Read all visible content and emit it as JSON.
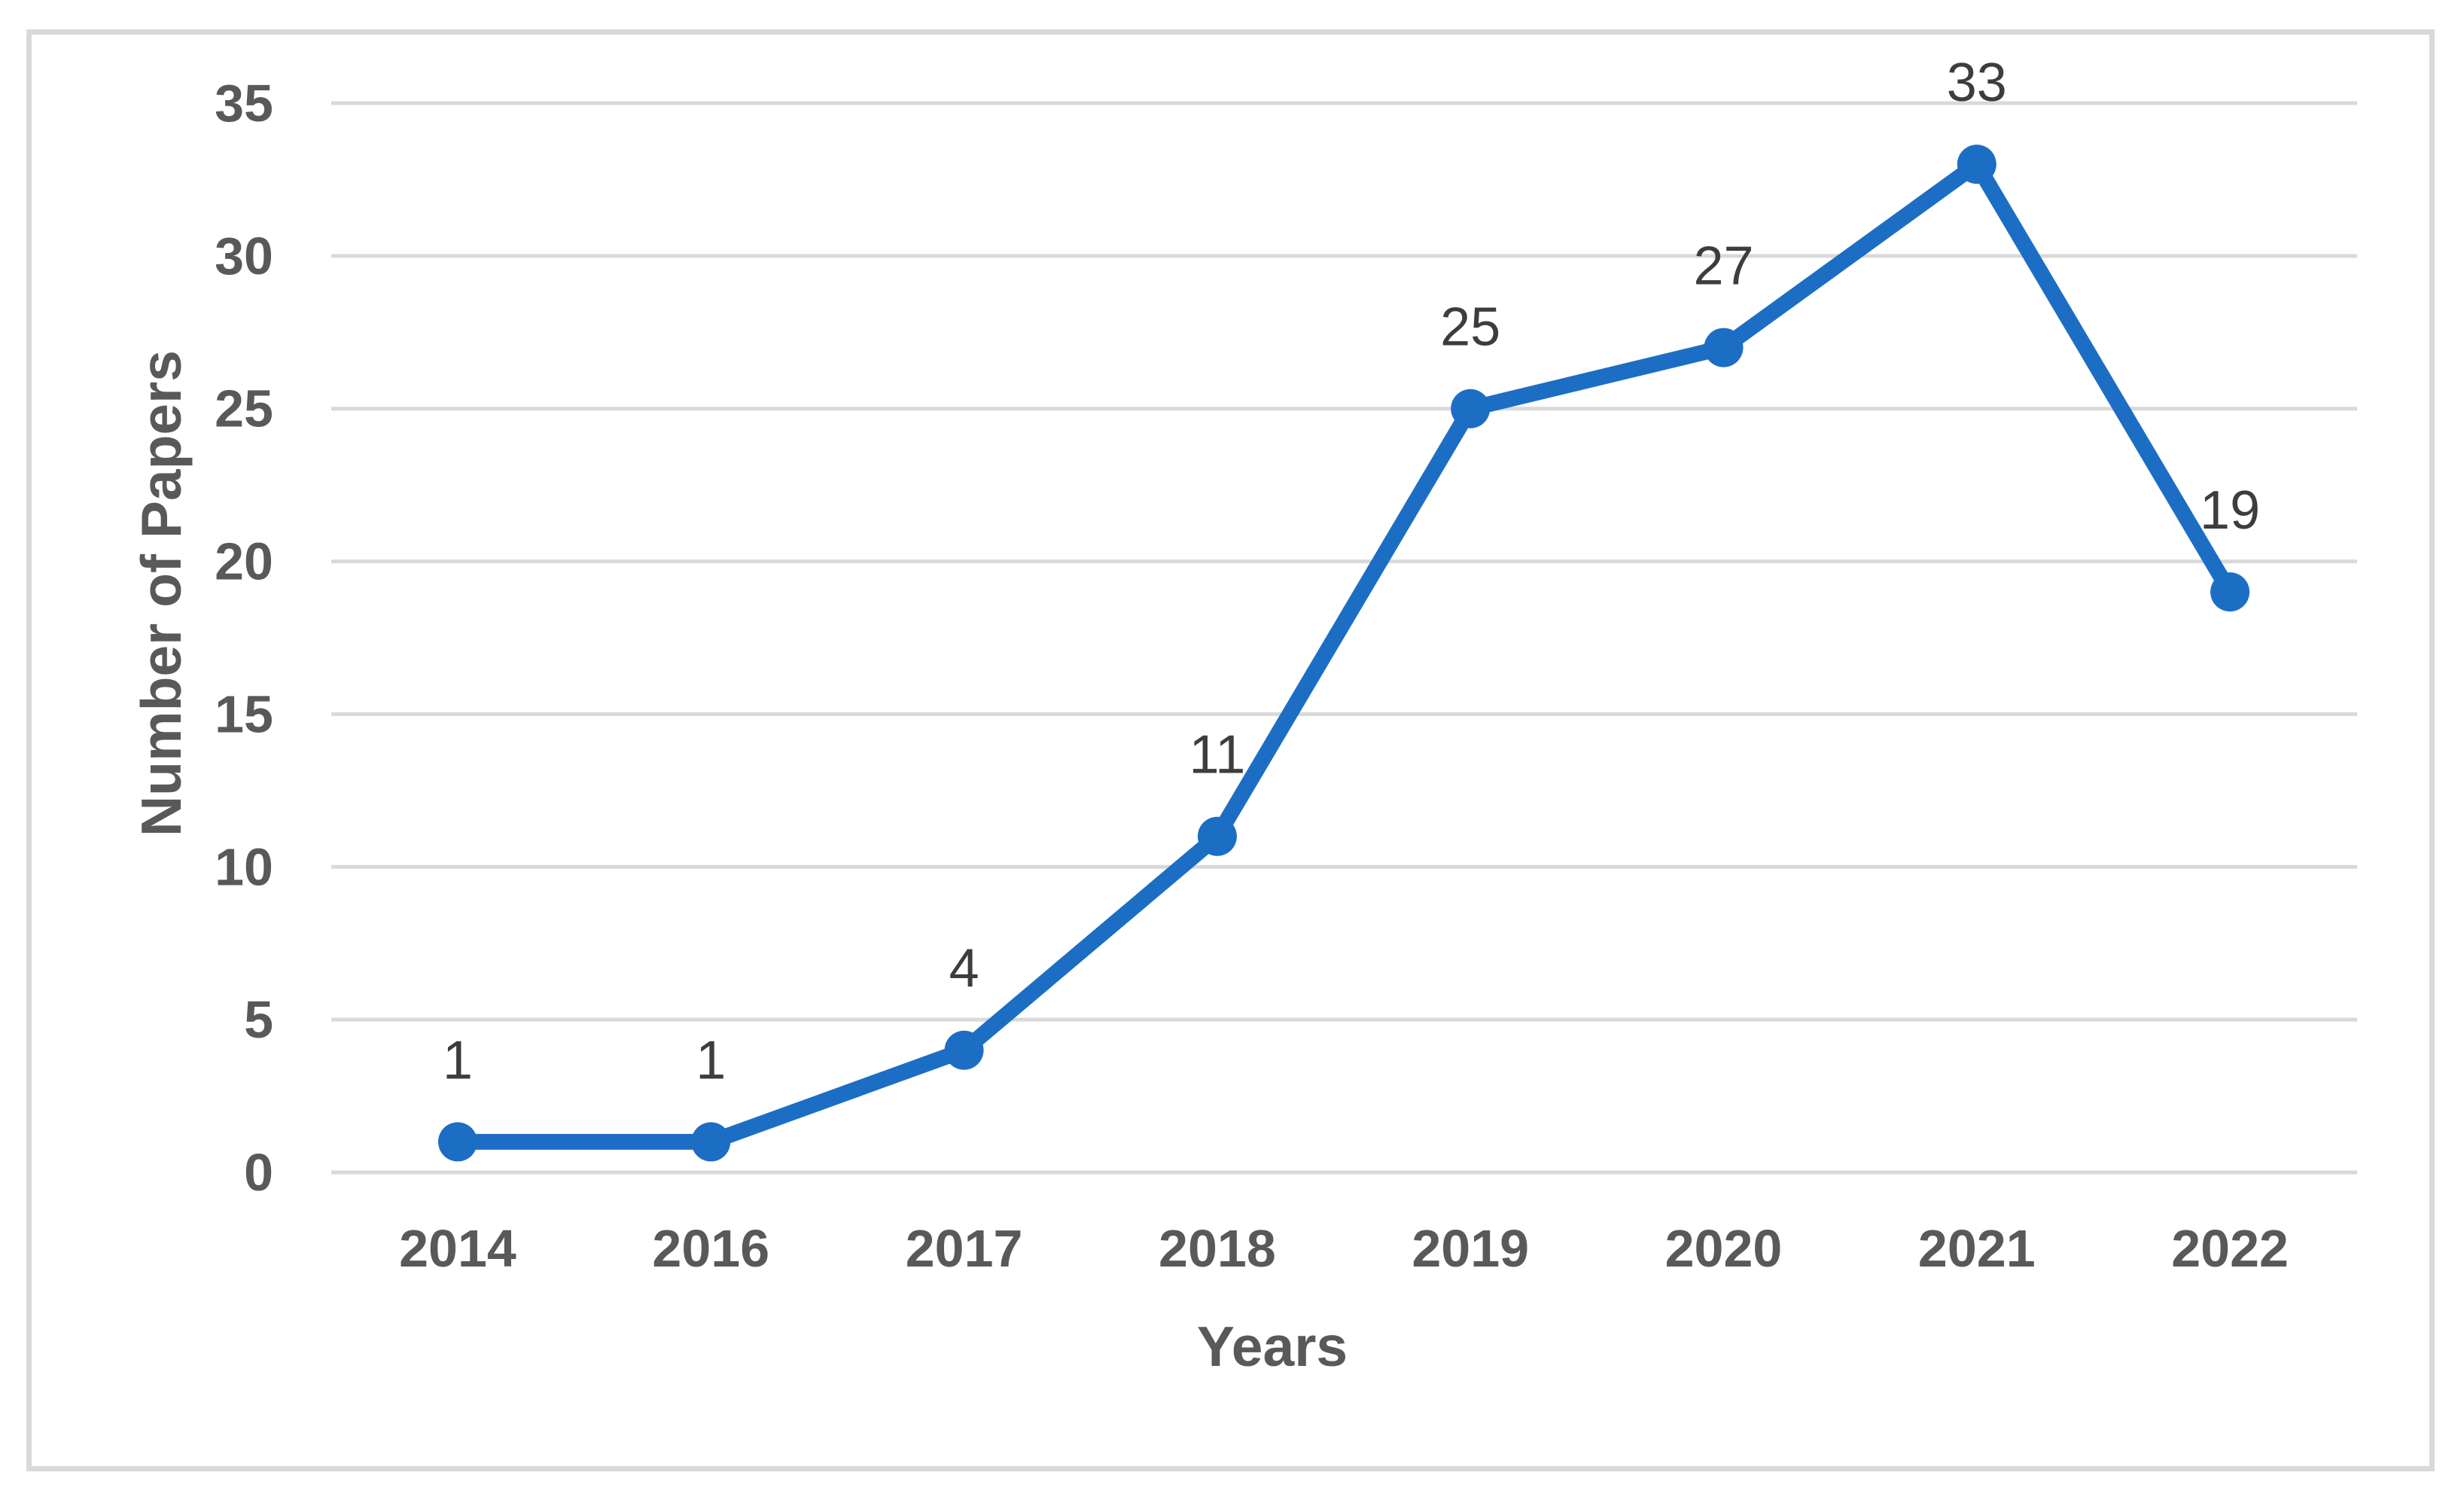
{
  "chart_data": {
    "type": "line",
    "title": "",
    "xlabel": "Years",
    "ylabel": "Number of Papers",
    "categories": [
      "2014",
      "2016",
      "2017",
      "2018",
      "2019",
      "2020",
      "2021",
      "2022"
    ],
    "series": [
      {
        "name": "Number of Papers",
        "values": [
          1,
          1,
          4,
          11,
          25,
          27,
          33,
          19
        ]
      }
    ],
    "data_labels": [
      "1",
      "1",
      "4",
      "11",
      "25",
      "27",
      "33",
      "19"
    ],
    "ylim": [
      0,
      35
    ],
    "yticks": [
      0,
      5,
      10,
      15,
      20,
      25,
      30,
      35
    ],
    "grid": "horizontal-only",
    "legend": "none",
    "colors": {
      "line": "#1C6EC4",
      "marker": "#1C6EC4",
      "gridline": "#D9D9D9",
      "frame_border": "#D9D9D9",
      "tick_label": "#595959",
      "axis_title": "#595959",
      "data_label": "#3D3D3D",
      "background": "#FFFFFF"
    }
  }
}
